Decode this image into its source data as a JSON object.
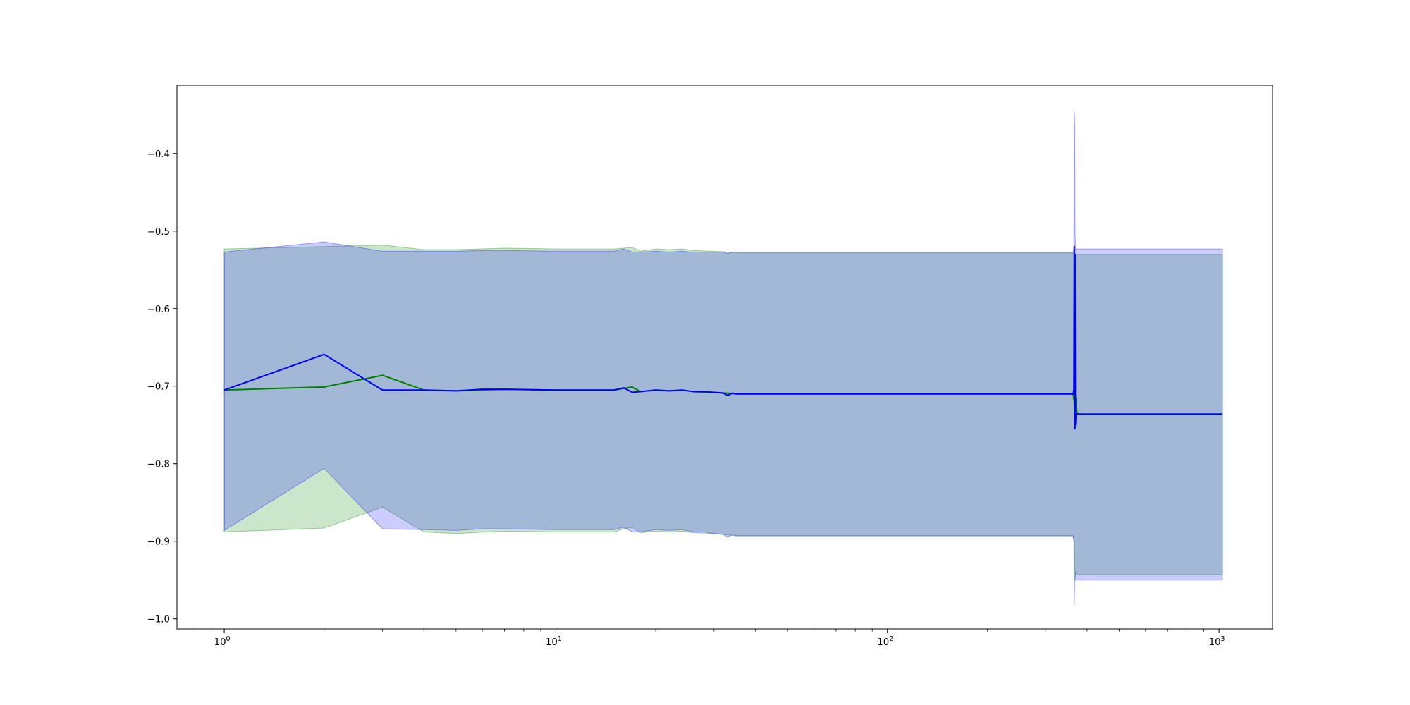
{
  "chart_data": {
    "type": "line",
    "xscale": "log",
    "xlim": [
      0.72,
      1450
    ],
    "ylim": [
      -1.013,
      -0.312
    ],
    "grid": false,
    "x_ticks": [
      {
        "value": 1,
        "base": "10",
        "exp": "0"
      },
      {
        "value": 10,
        "base": "10",
        "exp": "1"
      },
      {
        "value": 100,
        "base": "10",
        "exp": "2"
      },
      {
        "value": 1000,
        "base": "10",
        "exp": "3"
      }
    ],
    "y_ticks": [
      {
        "value": -0.4,
        "label": "−0.4"
      },
      {
        "value": -0.5,
        "label": "−0.5"
      },
      {
        "value": -0.6,
        "label": "−0.6"
      },
      {
        "value": -0.7,
        "label": "−0.7"
      },
      {
        "value": -0.8,
        "label": "−0.8"
      },
      {
        "value": -0.9,
        "label": "−0.9"
      },
      {
        "value": -1.0,
        "label": "−1.0"
      }
    ],
    "series": [
      {
        "color": "#008000",
        "band_color": "#008000",
        "band_opacity": 0.2,
        "x": [
          1,
          2,
          3,
          4,
          5,
          7,
          10,
          15,
          16,
          17,
          18,
          20,
          22,
          24,
          26,
          30,
          33,
          35,
          50,
          100,
          200,
          363,
          366,
          368,
          370,
          373,
          378,
          1024
        ],
        "y": [
          -0.705,
          -0.701,
          -0.686,
          -0.705,
          -0.706,
          -0.704,
          -0.705,
          -0.705,
          -0.703,
          -0.701,
          -0.707,
          -0.705,
          -0.706,
          -0.705,
          -0.707,
          -0.708,
          -0.709,
          -0.71,
          -0.71,
          -0.71,
          -0.71,
          -0.71,
          -0.72,
          -0.755,
          -0.715,
          -0.735,
          -0.736,
          -0.736
        ],
        "upper": [
          -0.523,
          -0.52,
          -0.518,
          -0.524,
          -0.524,
          -0.522,
          -0.523,
          -0.523,
          -0.522,
          -0.521,
          -0.526,
          -0.523,
          -0.524,
          -0.523,
          -0.525,
          -0.526,
          -0.527,
          -0.528,
          -0.528,
          -0.528,
          -0.528,
          -0.528,
          -0.53,
          -0.55,
          -0.53,
          -0.53,
          -0.53,
          -0.53
        ],
        "lower": [
          -0.888,
          -0.883,
          -0.856,
          -0.888,
          -0.89,
          -0.887,
          -0.888,
          -0.888,
          -0.884,
          -0.882,
          -0.889,
          -0.887,
          -0.888,
          -0.887,
          -0.889,
          -0.89,
          -0.892,
          -0.893,
          -0.893,
          -0.893,
          -0.893,
          -0.893,
          -0.9,
          -0.95,
          -0.94,
          -0.943,
          -0.943,
          -0.943
        ]
      },
      {
        "color": "#0000ff",
        "band_color": "#0000ff",
        "band_opacity": 0.2,
        "x": [
          1,
          2,
          3,
          4,
          5,
          6,
          7,
          10,
          15,
          16,
          17,
          18,
          20,
          22,
          24,
          26,
          28,
          30,
          32,
          33,
          34,
          35,
          50,
          100,
          200,
          363,
          365,
          366,
          367,
          368,
          369,
          370,
          372,
          375,
          1024
        ],
        "y": [
          -0.705,
          -0.659,
          -0.705,
          -0.705,
          -0.706,
          -0.704,
          -0.704,
          -0.705,
          -0.705,
          -0.702,
          -0.708,
          -0.707,
          -0.705,
          -0.706,
          -0.705,
          -0.707,
          -0.707,
          -0.708,
          -0.709,
          -0.712,
          -0.709,
          -0.71,
          -0.71,
          -0.71,
          -0.71,
          -0.71,
          -0.705,
          -0.52,
          -0.755,
          -0.53,
          -0.75,
          -0.74,
          -0.736,
          -0.736,
          -0.736
        ],
        "upper": [
          -0.527,
          -0.514,
          -0.526,
          -0.526,
          -0.526,
          -0.525,
          -0.525,
          -0.526,
          -0.526,
          -0.523,
          -0.527,
          -0.527,
          -0.526,
          -0.527,
          -0.526,
          -0.527,
          -0.527,
          -0.527,
          -0.527,
          -0.529,
          -0.527,
          -0.527,
          -0.527,
          -0.527,
          -0.527,
          -0.527,
          -0.523,
          -0.345,
          -0.36,
          -0.5,
          -0.523,
          -0.523,
          -0.523,
          -0.523,
          -0.523
        ],
        "lower": [
          -0.886,
          -0.806,
          -0.884,
          -0.885,
          -0.886,
          -0.884,
          -0.884,
          -0.885,
          -0.885,
          -0.882,
          -0.888,
          -0.888,
          -0.885,
          -0.886,
          -0.885,
          -0.888,
          -0.888,
          -0.89,
          -0.891,
          -0.895,
          -0.891,
          -0.893,
          -0.893,
          -0.893,
          -0.893,
          -0.893,
          -0.9,
          -0.983,
          -0.95,
          -0.95,
          -0.95,
          -0.95,
          -0.95,
          -0.95,
          -0.95
        ]
      }
    ]
  }
}
